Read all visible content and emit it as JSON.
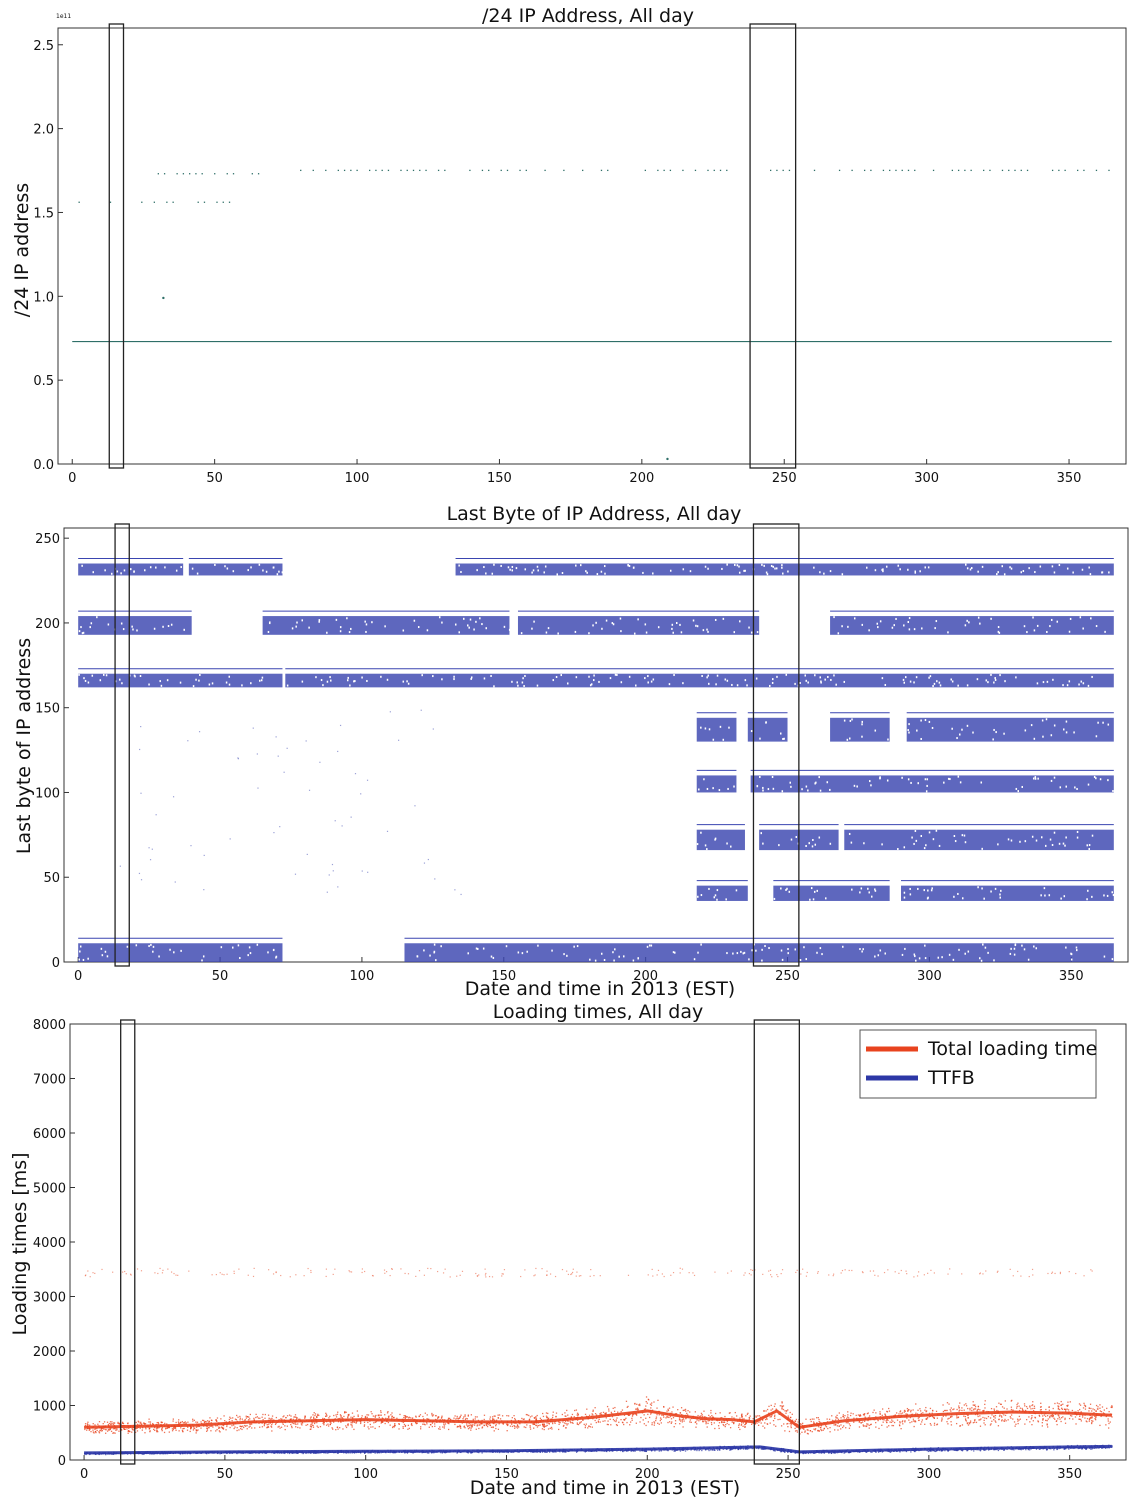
{
  "chart_data": [
    {
      "type": "scatter",
      "title": "/24 IP Address, All day",
      "xlabel": "",
      "ylabel": "/24 IP address",
      "xlim": [
        -5,
        370
      ],
      "ylim": [
        0,
        2.6
      ],
      "x_ticks": [
        0,
        50,
        100,
        150,
        200,
        250,
        300,
        350
      ],
      "y_ticks": [
        0.0,
        0.5,
        1.0,
        1.5,
        2.0,
        2.5
      ],
      "y_tick_labels": [
        "0.0",
        "0.5",
        "1.0",
        "1.5",
        "2.0",
        "2.5"
      ],
      "y_offset_label": "1e11",
      "color": "#2f6f68",
      "baseline": {
        "y": 0.73,
        "x": [
          0,
          365
        ]
      },
      "bands": [
        {
          "y": 1.56,
          "x": [
            0,
            60
          ]
        },
        {
          "y": 1.73,
          "x": [
            30,
            70
          ]
        },
        {
          "y": 1.75,
          "x": [
            80,
            365
          ]
        }
      ],
      "points": [
        [
          32,
          0.99
        ],
        [
          209,
          0.03
        ]
      ],
      "highlight_windows": [
        [
          13,
          18
        ],
        [
          238,
          254
        ]
      ]
    },
    {
      "type": "scatter",
      "title": "Last Byte of IP Address, All day",
      "xlabel": "Date and time in 2013 (EST)",
      "ylabel": "Last byte of IP address",
      "xlim": [
        -5,
        370
      ],
      "ylim": [
        0,
        256
      ],
      "x_ticks": [
        0,
        50,
        100,
        150,
        200,
        250,
        300,
        350
      ],
      "y_ticks": [
        0,
        50,
        100,
        150,
        200,
        250
      ],
      "color": "#3a45b0",
      "bands": [
        {
          "y_range": [
            228,
            238
          ],
          "x_segments": [
            [
              0,
              37
            ],
            [
              39,
              72
            ],
            [
              133,
              365
            ]
          ]
        },
        {
          "y_range": [
            193,
            207
          ],
          "x_segments": [
            [
              0,
              40
            ],
            [
              65,
              152
            ],
            [
              155,
              240
            ],
            [
              265,
              365
            ]
          ]
        },
        {
          "y_range": [
            162,
            173
          ],
          "x_segments": [
            [
              0,
              72
            ],
            [
              73,
              365
            ]
          ]
        },
        {
          "y_range": [
            130,
            147
          ],
          "x_segments": [
            [
              218,
              232
            ],
            [
              236,
              250
            ],
            [
              265,
              286
            ],
            [
              292,
              365
            ]
          ]
        },
        {
          "y_range": [
            100,
            113
          ],
          "x_segments": [
            [
              218,
              232
            ],
            [
              237,
              365
            ]
          ]
        },
        {
          "y_range": [
            66,
            81
          ],
          "x_segments": [
            [
              218,
              235
            ],
            [
              240,
              268
            ],
            [
              270,
              365
            ]
          ]
        },
        {
          "y_range": [
            36,
            48
          ],
          "x_segments": [
            [
              218,
              236
            ],
            [
              245,
              286
            ],
            [
              290,
              365
            ]
          ]
        },
        {
          "y_range": [
            0,
            14
          ],
          "x_segments": [
            [
              0,
              72
            ],
            [
              115,
              365
            ]
          ]
        }
      ],
      "highlight_windows": [
        [
          13,
          18
        ],
        [
          238,
          254
        ]
      ]
    },
    {
      "type": "line",
      "title": "Loading times, All day",
      "xlabel": "Date and time in 2013 (EST)",
      "ylabel": "Loading times [ms]",
      "xlim": [
        -5,
        370
      ],
      "ylim": [
        0,
        8000
      ],
      "x_ticks": [
        0,
        50,
        100,
        150,
        200,
        250,
        300,
        350
      ],
      "y_ticks": [
        0,
        1000,
        2000,
        3000,
        4000,
        5000,
        6000,
        7000,
        8000
      ],
      "legend": "top-right",
      "series": [
        {
          "name": "Total loading time",
          "color": "#e8431e",
          "x": [
            0,
            20,
            40,
            60,
            80,
            100,
            120,
            140,
            160,
            180,
            200,
            210,
            220,
            230,
            238,
            246,
            254,
            270,
            290,
            310,
            330,
            350,
            365
          ],
          "y": [
            600,
            620,
            640,
            700,
            720,
            740,
            720,
            700,
            700,
            780,
            900,
            820,
            760,
            740,
            700,
            900,
            600,
            720,
            800,
            850,
            880,
            860,
            820
          ],
          "spread": [
            130,
            140,
            150,
            170,
            180,
            190,
            180,
            170,
            180,
            220,
            300,
            200,
            180,
            180,
            160,
            320,
            150,
            200,
            230,
            260,
            270,
            260,
            250
          ],
          "outlier_band": 3450
        },
        {
          "name": "TTFB",
          "color": "#2c37a6",
          "x": [
            0,
            50,
            100,
            150,
            200,
            240,
            254,
            300,
            350,
            365
          ],
          "y": [
            130,
            150,
            160,
            170,
            200,
            240,
            150,
            200,
            240,
            250
          ],
          "spread": [
            25,
            25,
            28,
            30,
            35,
            40,
            30,
            35,
            40,
            40
          ]
        }
      ],
      "highlight_windows": [
        [
          13,
          18
        ],
        [
          238,
          254
        ]
      ]
    }
  ]
}
